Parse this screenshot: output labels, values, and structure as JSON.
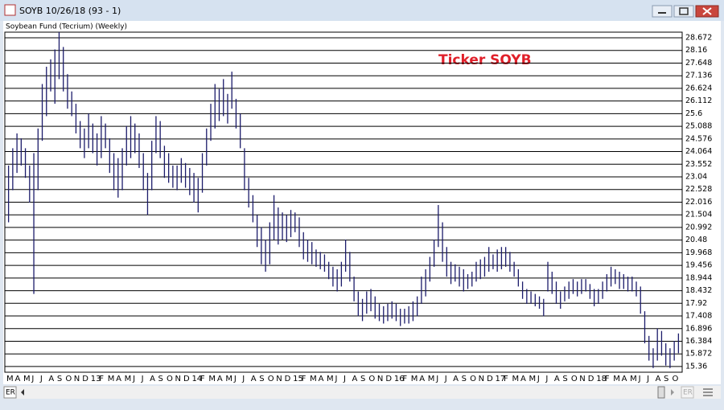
{
  "window": {
    "title": "SOYB 10/26/18 (93 - 1)",
    "left_label": "ER",
    "right_label": "ER"
  },
  "chart_data": {
    "type": "hilo",
    "title": "Soybean Fund (Tecrium) (Weekly)",
    "annotation": "Ticker SOYB",
    "color": "#1c1c6b",
    "grid": true,
    "ylim": [
      15.13,
      28.9
    ],
    "yticks": [
      15.36,
      15.872,
      16.384,
      16.896,
      17.408,
      17.92,
      18.432,
      18.944,
      19.456,
      19.968,
      20.48,
      20.992,
      21.504,
      22.016,
      22.528,
      23.04,
      23.552,
      24.064,
      24.576,
      25.088,
      25.6,
      26.112,
      26.624,
      27.136,
      27.648,
      28.16,
      28.672
    ],
    "categories": [
      "M",
      null,
      "A",
      null,
      "M",
      null,
      "J",
      null,
      "J",
      null,
      "A",
      null,
      "S",
      null,
      "O",
      null,
      "N",
      null,
      "D",
      null,
      "13",
      null,
      "F",
      null,
      "M",
      null,
      "A",
      null,
      "M",
      null,
      "J",
      null,
      "J",
      null,
      "A",
      null,
      "S",
      null,
      "O",
      null,
      "N",
      null,
      "D",
      null,
      "14",
      null,
      "F",
      null,
      "M",
      null,
      "A",
      null,
      "M",
      null,
      "J",
      null,
      "J",
      null,
      "A",
      null,
      "S",
      null,
      "O",
      null,
      "N",
      null,
      "D",
      null,
      "15",
      null,
      "F",
      null,
      "M",
      null,
      "A",
      null,
      "M",
      null,
      "J",
      null,
      "J",
      null,
      "A",
      null,
      "S",
      null,
      "O",
      null,
      "N",
      null,
      "D",
      null,
      "16",
      null,
      "F",
      null,
      "M",
      null,
      "A",
      null,
      "M",
      null,
      "J",
      null,
      "J",
      null,
      "A",
      null,
      "S",
      null,
      "O",
      null,
      "N",
      null,
      "D",
      null,
      "17",
      null,
      "F",
      null,
      "M",
      null,
      "A",
      null,
      "M",
      null,
      "J",
      null,
      "J",
      null,
      "A",
      null,
      "S",
      null,
      "O",
      null,
      "N",
      null,
      "D",
      null,
      "18",
      null,
      "F",
      null,
      "M",
      null,
      "A",
      null,
      "M",
      null,
      "J",
      null,
      "J",
      null,
      "A",
      null,
      "S",
      null,
      "O",
      null
    ],
    "low": [
      21.2,
      22.5,
      23.2,
      23.5,
      23,
      22,
      18.3,
      22.5,
      24.5,
      25.5,
      26.5,
      26,
      27,
      26.5,
      25.8,
      25.5,
      24.8,
      24.2,
      23.8,
      24.2,
      24,
      23.5,
      23.8,
      24.2,
      23.2,
      22.5,
      22.2,
      22.5,
      23.5,
      23.8,
      24,
      23.4,
      22.5,
      21.5,
      22.5,
      24,
      23.8,
      23,
      22.8,
      22.6,
      22.5,
      22.8,
      22.6,
      22.3,
      22,
      21.6,
      22.4,
      23.5,
      24.5,
      25,
      25.3,
      25.5,
      25.2,
      25.8,
      25,
      24.2,
      22.5,
      21.8,
      21.2,
      20.2,
      19.5,
      19.2,
      19.5,
      20.5,
      20.3,
      20.5,
      20.4,
      20.6,
      20.8,
      20.2,
      19.7,
      19.6,
      19.5,
      19.4,
      19.3,
      19.2,
      18.9,
      18.6,
      18.4,
      18.6,
      19.2,
      18.8,
      18,
      17.4,
      17.2,
      17.5,
      17.6,
      17.3,
      17.2,
      17.1,
      17.2,
      17.3,
      17.2,
      17,
      17.1,
      17.1,
      17.2,
      17.4,
      17.9,
      18.2,
      18.8,
      19.4,
      20.2,
      19.6,
      19,
      18.7,
      18.8,
      18.6,
      18.4,
      18.5,
      18.6,
      18.8,
      18.9,
      19,
      19.2,
      19.3,
      19.2,
      19.3,
      19.4,
      19.2,
      19,
      18.6,
      18.1,
      17.9,
      17.9,
      17.8,
      17.7,
      17.4,
      18.4,
      18.3,
      17.9,
      17.7,
      18,
      18.1,
      18.3,
      18.2,
      18.3,
      18.4,
      18.1,
      17.8,
      17.9,
      18.1,
      18.4,
      18.6,
      18.7,
      18.5,
      18.5,
      18.4,
      18.4,
      18.2,
      17.5,
      16.3,
      15.6,
      15.3,
      15.6,
      15.8,
      15.4,
      15.3,
      15.6,
      15.9
    ],
    "high": [
      23.5,
      24.2,
      24.8,
      24.6,
      24.2,
      23.5,
      24,
      25,
      26.8,
      27.5,
      27.8,
      28.2,
      28.9,
      28.3,
      27.2,
      26.5,
      26,
      25.3,
      25,
      25.6,
      25.2,
      24.8,
      25.5,
      25.2,
      24.6,
      24,
      23.8,
      24.2,
      25.1,
      25.5,
      25.2,
      24.8,
      24,
      23.2,
      24.5,
      25.5,
      25.3,
      24.3,
      24,
      23.5,
      23.5,
      23.8,
      23.6,
      23.4,
      23.2,
      23,
      24,
      25,
      26,
      26.8,
      26.6,
      27,
      26.4,
      27.3,
      26.2,
      25.6,
      24.2,
      23,
      22.3,
      21.5,
      21,
      20.5,
      21.2,
      22.3,
      21.8,
      21.6,
      21.5,
      21.7,
      21.6,
      21.4,
      20.8,
      20.5,
      20.4,
      20.1,
      20,
      19.9,
      19.6,
      19.4,
      19.3,
      19.6,
      20.5,
      20,
      19,
      18.4,
      18.1,
      18.4,
      18.5,
      18.2,
      17.9,
      17.8,
      17.9,
      18,
      17.9,
      17.7,
      17.7,
      17.8,
      18,
      18.2,
      19,
      19.3,
      19.8,
      20.5,
      21.9,
      21.2,
      20.2,
      19.6,
      19.5,
      19.4,
      19.3,
      19.1,
      19.2,
      19.6,
      19.7,
      19.8,
      20.2,
      19.9,
      20.1,
      20.2,
      20.2,
      20,
      19.6,
      19.3,
      18.8,
      18.5,
      18.4,
      18.3,
      18.2,
      18.1,
      19.6,
      19.2,
      18.8,
      18.4,
      18.6,
      18.8,
      18.9,
      18.8,
      18.9,
      18.9,
      18.7,
      18.5,
      18.5,
      18.8,
      19.1,
      19.4,
      19.3,
      19.2,
      19.1,
      19,
      19,
      18.8,
      18.6,
      17.6,
      16.6,
      16.1,
      16.9,
      16.8,
      16.3,
      16.1,
      16.4,
      16.7
    ]
  }
}
